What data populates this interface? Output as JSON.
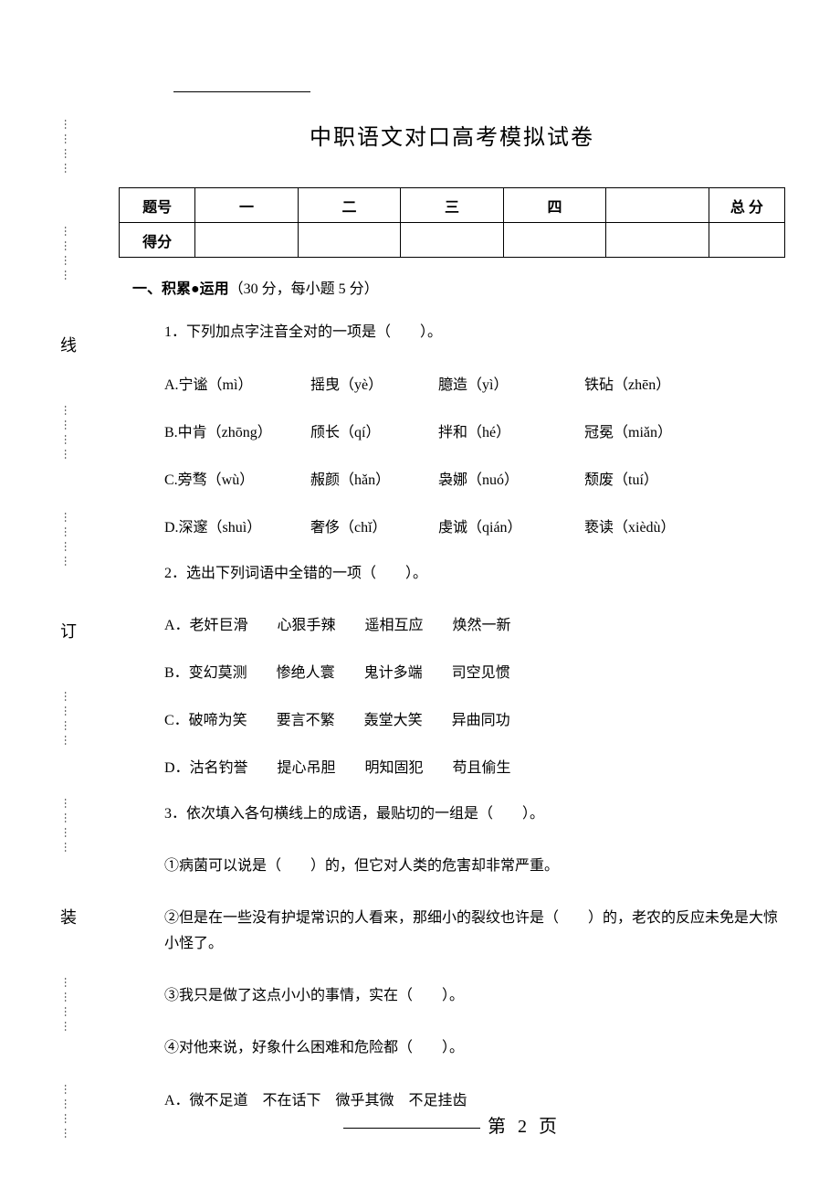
{
  "title": "中职语文对口高考模拟试卷",
  "binding": {
    "chars": [
      "线",
      "订",
      "装"
    ],
    "dots": "…………"
  },
  "scoreTable": {
    "rowLabels": [
      "题号",
      "得分"
    ],
    "cols": [
      "一",
      "二",
      "三",
      "四",
      "",
      "总 分"
    ]
  },
  "section1": {
    "heading_bold": "一、积累●运用",
    "heading_rest": "（30 分，每小题 5 分）"
  },
  "q1": {
    "stem": "1．下列加点字注音全对的一项是（　　）。",
    "options": [
      {
        "a": "A.宁谧（mì）",
        "b": "摇曳（yè）",
        "c": "臆造（yì）",
        "d": "铁砧（zhēn）"
      },
      {
        "a": "B.中肯（zhōng）",
        "b": "颀长（qí）",
        "c": "拌和（hé）",
        "d": "冠冕（miǎn）"
      },
      {
        "a": "C.旁骛（wù）",
        "b": "赧颜（hǎn）",
        "c": "袅娜（nuó）",
        "d": "颓废（tuí）"
      },
      {
        "a": "D.深邃（shuì）",
        "b": "奢侈（chǐ）",
        "c": "虔诚（qián）",
        "d": "亵读（xièdù）"
      }
    ]
  },
  "q2": {
    "stem": "2．选出下列词语中全错的一项（　　）。",
    "options": [
      "A．老奸巨滑　　心狠手辣　　遥相互应　　焕然一新",
      "B．变幻莫测　　惨绝人寰　　鬼计多端　　司空见惯",
      "C．破啼为笑　　要言不繁　　轰堂大笑　　异曲同功",
      "D．沽名钓誉　　提心吊胆　　明知固犯　　苟且偷生"
    ]
  },
  "q3": {
    "stem": "3．依次填入各句横线上的成语，最贴切的一组是（　　）。",
    "subs": [
      "①病菌可以说是（　　）的，但它对人类的危害却非常严重。",
      "②但是在一些没有护堤常识的人看来，那细小的裂纹也许是（　　）的，老农的反应未免是大惊小怪了。",
      "③我只是做了这点小小的事情，实在（　　）。",
      "④对他来说，好象什么困难和危险都（　　）。"
    ],
    "optionA": "A．微不足道　不在话下　微乎其微　不足挂齿"
  },
  "footer": "第 2 页"
}
